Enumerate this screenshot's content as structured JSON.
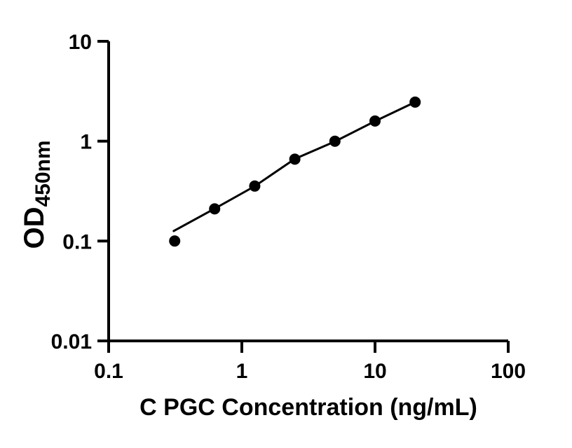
{
  "figure": {
    "background_color": "#ffffff",
    "foreground_color": "#000000"
  },
  "chart_data": {
    "type": "scatter",
    "title": "",
    "xlabel": "C PGC Concentration (ng/mL)",
    "ylabel_main": "OD",
    "ylabel_sub": "450nm",
    "x_scale": "log",
    "y_scale": "log",
    "xlim": [
      0.1,
      100
    ],
    "ylim": [
      0.01,
      10
    ],
    "grid": false,
    "legend": "none",
    "x_ticks": [
      {
        "value": 0.1,
        "label": "0.1"
      },
      {
        "value": 1,
        "label": "1"
      },
      {
        "value": 10,
        "label": "10"
      },
      {
        "value": 100,
        "label": "100"
      }
    ],
    "y_ticks": [
      {
        "value": 0.01,
        "label": "0.01"
      },
      {
        "value": 0.1,
        "label": "0.1"
      },
      {
        "value": 1,
        "label": "1"
      },
      {
        "value": 10,
        "label": "10"
      }
    ],
    "series": [
      {
        "name": "standard curve points",
        "marker": "filled-circle",
        "color": "#000000",
        "points": [
          {
            "x": 0.313,
            "y": 0.1
          },
          {
            "x": 0.625,
            "y": 0.21
          },
          {
            "x": 1.25,
            "y": 0.355
          },
          {
            "x": 2.5,
            "y": 0.66
          },
          {
            "x": 5,
            "y": 1.0
          },
          {
            "x": 10,
            "y": 1.59
          },
          {
            "x": 20,
            "y": 2.46
          }
        ]
      }
    ],
    "fit_line": [
      {
        "x": 0.308,
        "y": 0.126
      },
      {
        "x": 0.625,
        "y": 0.211
      },
      {
        "x": 1.25,
        "y": 0.354
      },
      {
        "x": 2.5,
        "y": 0.664
      },
      {
        "x": 5,
        "y": 0.993
      },
      {
        "x": 10,
        "y": 1.585
      },
      {
        "x": 20,
        "y": 2.46
      }
    ]
  }
}
